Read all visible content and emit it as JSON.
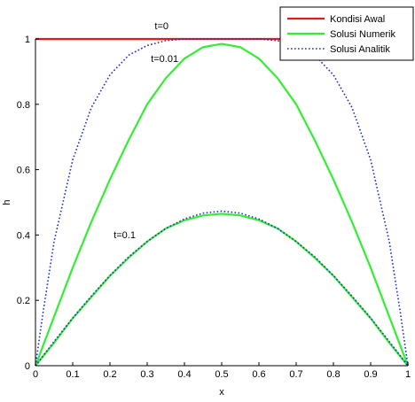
{
  "chart_data": {
    "type": "line",
    "title": "",
    "xlabel": "x",
    "ylabel": "h",
    "xlim": [
      0,
      1
    ],
    "ylim": [
      0,
      1
    ],
    "grid": false,
    "legend_position": "top-right",
    "xticks": [
      0,
      0.1,
      0.2,
      0.3,
      0.4,
      0.5,
      0.6,
      0.7,
      0.8,
      0.9,
      1
    ],
    "xtick_labels": [
      "0",
      "0.1",
      "0.2",
      "0.3",
      "0.4",
      "0.5",
      "0.6",
      "0.7",
      "0.8",
      "0.9",
      "1"
    ],
    "yticks": [
      0,
      0.2,
      0.4,
      0.6,
      0.8,
      1
    ],
    "ytick_labels": [
      "0",
      "0.2",
      "0.4",
      "0.6",
      "0.8",
      "1"
    ],
    "legend": [
      {
        "label": "Kondisi Awal",
        "color": "#e31a1c",
        "style": "solid"
      },
      {
        "label": "Solusi Numerik",
        "color": "#33ee33",
        "style": "solid"
      },
      {
        "label": "Solusi Analitik",
        "color": "#1f2fbf",
        "style": "dotted"
      }
    ],
    "annotations": [
      {
        "text": "t=0",
        "x": 0.32,
        "y": 1.03
      },
      {
        "text": "t=0.01",
        "x": 0.31,
        "y": 0.93
      },
      {
        "text": "t=0.1",
        "x": 0.21,
        "y": 0.39
      }
    ],
    "series": [
      {
        "name": "Kondisi Awal",
        "color": "#e31a1c",
        "style": "solid",
        "x": [
          0,
          1
        ],
        "y": [
          1,
          1
        ]
      },
      {
        "name": "Solusi Numerik",
        "color": "#33ee33",
        "style": "solid",
        "x": [
          0,
          0.05,
          0.1,
          0.15,
          0.2,
          0.25,
          0.3,
          0.35,
          0.4,
          0.45,
          0.5,
          0.55,
          0.6,
          0.65,
          0.7,
          0.75,
          0.8,
          0.85,
          0.9,
          0.95,
          1
        ],
        "y": [
          0,
          0.15,
          0.3,
          0.44,
          0.57,
          0.69,
          0.8,
          0.88,
          0.94,
          0.975,
          0.985,
          0.975,
          0.94,
          0.88,
          0.8,
          0.69,
          0.57,
          0.44,
          0.3,
          0.15,
          0
        ]
      },
      {
        "name": "Solusi Numerik",
        "color": "#33ee33",
        "style": "solid",
        "x": [
          0,
          0.05,
          0.1,
          0.15,
          0.2,
          0.25,
          0.3,
          0.35,
          0.4,
          0.45,
          0.5,
          0.55,
          0.6,
          0.65,
          0.7,
          0.75,
          0.8,
          0.85,
          0.9,
          0.95,
          1
        ],
        "y": [
          0,
          0.07,
          0.145,
          0.21,
          0.275,
          0.33,
          0.38,
          0.42,
          0.445,
          0.46,
          0.465,
          0.46,
          0.445,
          0.42,
          0.38,
          0.33,
          0.275,
          0.21,
          0.145,
          0.07,
          0
        ]
      },
      {
        "name": "Solusi Analitik",
        "color": "#1f2fbf",
        "style": "dotted",
        "x": [
          0,
          0.02,
          0.05,
          0.1,
          0.15,
          0.2,
          0.25,
          0.3,
          0.35,
          0.4,
          0.45,
          0.5,
          0.55,
          0.6,
          0.65,
          0.7,
          0.75,
          0.8,
          0.85,
          0.9,
          0.95,
          0.98,
          1
        ],
        "y": [
          0,
          0.16,
          0.38,
          0.63,
          0.79,
          0.89,
          0.95,
          0.98,
          0.995,
          1,
          1,
          1,
          1,
          1,
          0.995,
          0.98,
          0.95,
          0.89,
          0.79,
          0.63,
          0.38,
          0.16,
          0
        ]
      },
      {
        "name": "Solusi Analitik",
        "color": "#1f2fbf",
        "style": "dotted",
        "x": [
          0,
          0.05,
          0.1,
          0.15,
          0.2,
          0.25,
          0.3,
          0.35,
          0.4,
          0.45,
          0.5,
          0.55,
          0.6,
          0.65,
          0.7,
          0.75,
          0.8,
          0.85,
          0.9,
          0.95,
          1
        ],
        "y": [
          0,
          0.074,
          0.146,
          0.213,
          0.276,
          0.333,
          0.38,
          0.42,
          0.449,
          0.467,
          0.473,
          0.467,
          0.449,
          0.42,
          0.38,
          0.333,
          0.276,
          0.213,
          0.146,
          0.074,
          0
        ]
      }
    ]
  }
}
